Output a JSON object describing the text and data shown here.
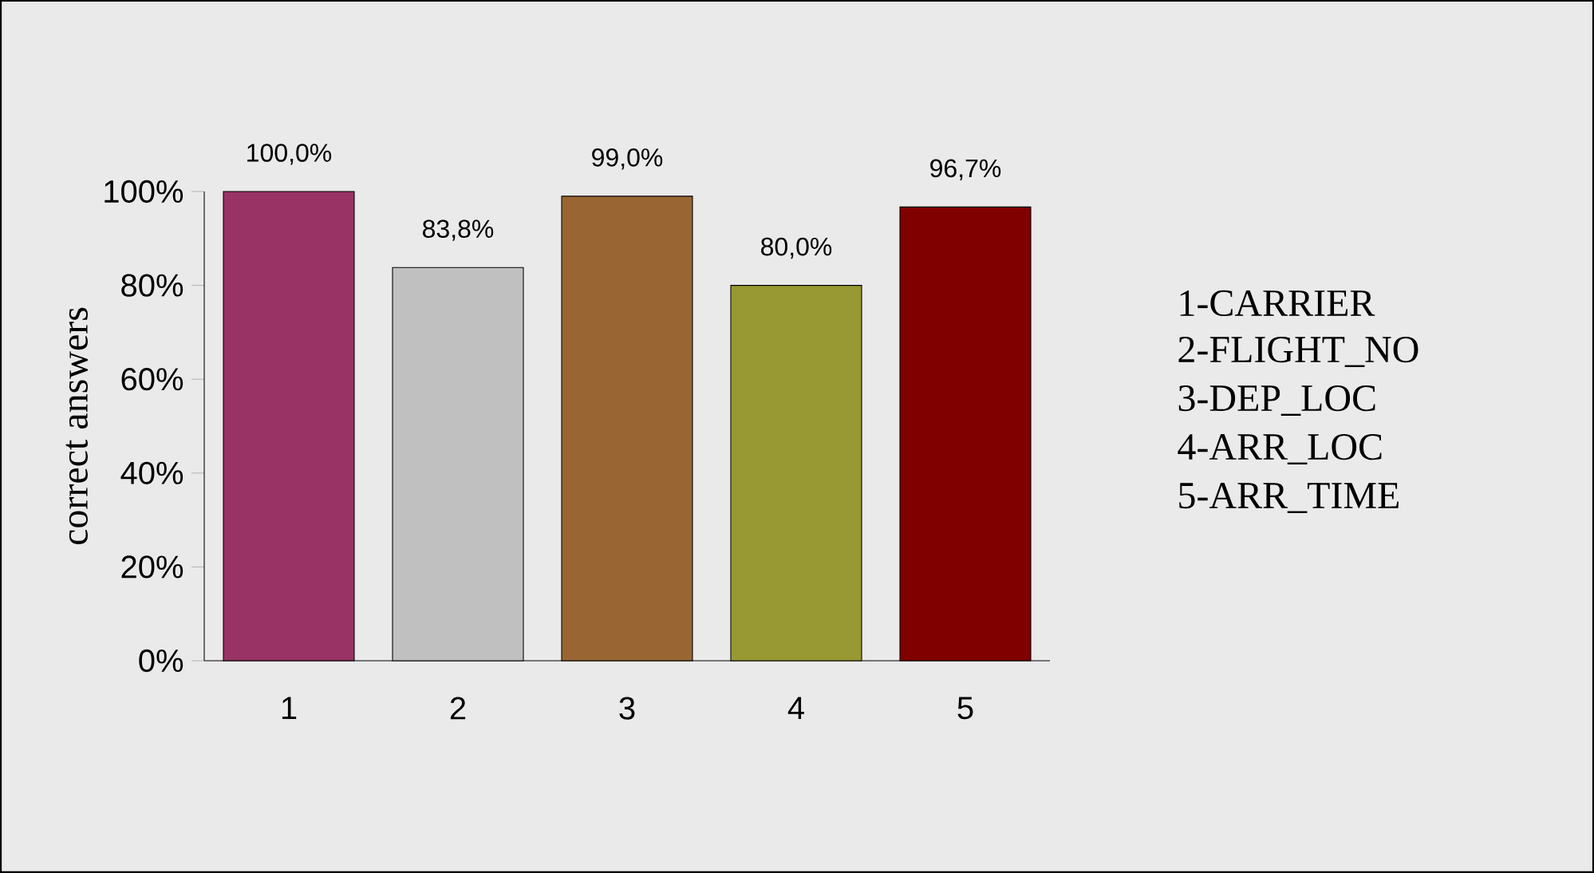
{
  "chart_data": {
    "type": "bar",
    "ylabel": "correct answers",
    "categories": [
      "1",
      "2",
      "3",
      "4",
      "5"
    ],
    "values": [
      100,
      83.8,
      99,
      80,
      96.7
    ],
    "colors": [
      "#993366",
      "#c0c0c0",
      "#996633",
      "#999933",
      "#800000"
    ],
    "value_labels": [
      "100,0%",
      "83,8%",
      "99,0%",
      "80,0%",
      "96,7%"
    ],
    "ylim": [
      0,
      100
    ],
    "yticks": [
      {
        "value": 0,
        "label": "0%"
      },
      {
        "value": 20,
        "label": "20%"
      },
      {
        "value": 40,
        "label": "40%"
      },
      {
        "value": 60,
        "label": "60%"
      },
      {
        "value": 80,
        "label": "80%"
      },
      {
        "value": 100,
        "label": "100%"
      }
    ],
    "annotations": [
      "1-CARRIER",
      "2-FLIGHT_NO",
      "3-DEP_LOC",
      "4-ARR_LOC",
      "5-ARR_TIME"
    ]
  }
}
